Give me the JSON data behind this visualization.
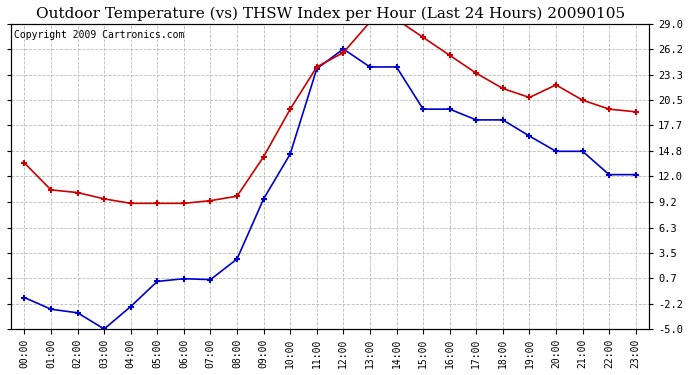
{
  "title": "Outdoor Temperature (vs) THSW Index per Hour (Last 24 Hours) 20090105",
  "copyright": "Copyright 2009 Cartronics.com",
  "hours": [
    "00:00",
    "01:00",
    "02:00",
    "03:00",
    "04:00",
    "05:00",
    "06:00",
    "07:00",
    "08:00",
    "09:00",
    "10:00",
    "11:00",
    "12:00",
    "13:00",
    "14:00",
    "15:00",
    "16:00",
    "17:00",
    "18:00",
    "19:00",
    "20:00",
    "21:00",
    "22:00",
    "23:00"
  ],
  "temp_blue": [
    -1.5,
    -2.8,
    -3.2,
    -5.0,
    -2.5,
    0.3,
    0.6,
    0.5,
    2.8,
    9.5,
    14.5,
    24.0,
    26.2,
    24.2,
    24.2,
    19.5,
    19.5,
    18.3,
    18.3,
    16.5,
    14.8,
    14.8,
    12.2,
    12.2
  ],
  "thsw_red": [
    13.5,
    10.5,
    10.2,
    9.5,
    9.0,
    9.0,
    9.0,
    9.3,
    9.8,
    14.2,
    19.5,
    24.2,
    25.8,
    29.2,
    29.5,
    27.5,
    25.5,
    23.5,
    21.8,
    20.8,
    22.2,
    20.5,
    19.5,
    19.2
  ],
  "ylim": [
    -5.0,
    29.0
  ],
  "yticks": [
    -5.0,
    -2.2,
    0.7,
    3.5,
    6.3,
    9.2,
    12.0,
    14.8,
    17.7,
    20.5,
    23.3,
    26.2,
    29.0
  ],
  "line_color_blue": "#0000cc",
  "line_color_red": "#cc0000",
  "bg_color": "#ffffff",
  "grid_color": "#bbbbbb",
  "title_fontsize": 11,
  "copyright_fontsize": 7
}
